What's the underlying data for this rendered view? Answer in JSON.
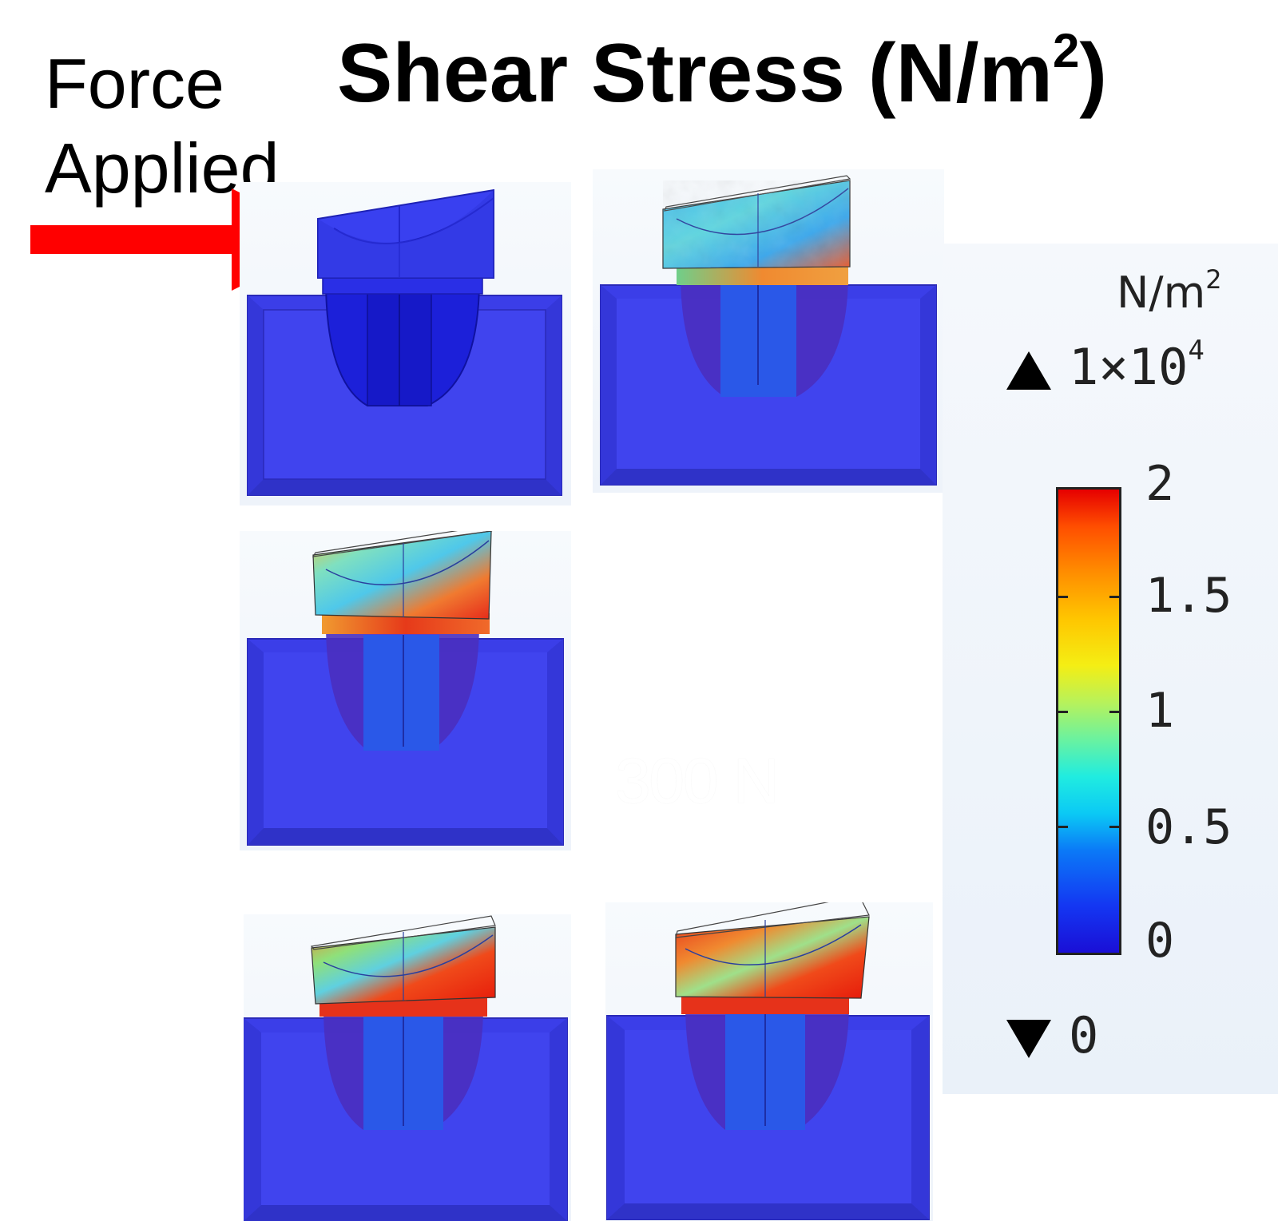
{
  "title": {
    "main": "Shear Stress (N/m",
    "sup": "2",
    "close": ")"
  },
  "force_label": {
    "line1": "Force",
    "line2": "Applied"
  },
  "arrow_color": "#ff0000",
  "colors": {
    "block_blue": "#3c3fe6",
    "cup_blue": "#1a22e0"
  },
  "legend": {
    "unit": "N/m",
    "unit_sup": "2",
    "max_prefix": "1×10",
    "max_sup": "4",
    "min_value": "0",
    "ticks": [
      "2",
      "1.5",
      "1",
      "0.5",
      "0"
    ]
  },
  "faint_label": "300 N",
  "panels": [
    {
      "id": "p1",
      "stress_level": 0.0
    },
    {
      "id": "p2",
      "stress_level": 0.35
    },
    {
      "id": "p3",
      "stress_level": 0.6
    },
    {
      "id": "p4",
      "stress_level": 0.8
    },
    {
      "id": "p5",
      "stress_level": 0.95
    }
  ]
}
